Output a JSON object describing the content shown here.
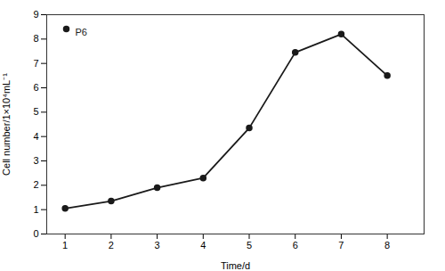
{
  "chart_data": {
    "type": "line",
    "x": [
      1,
      2,
      3,
      4,
      5,
      6,
      7,
      8
    ],
    "series": [
      {
        "name": "P6",
        "color": "#1a1a1a",
        "marker": "circle",
        "values": [
          1.05,
          1.35,
          1.9,
          2.3,
          4.35,
          7.45,
          8.2,
          6.5
        ]
      }
    ],
    "xlabel": "Time/d",
    "ylabel": "Cell number/1×10⁴mL⁻¹",
    "xlim": [
      0.6,
      8.8
    ],
    "ylim": [
      0,
      9
    ],
    "xticks": [
      1,
      2,
      3,
      4,
      5,
      6,
      7,
      8
    ],
    "yticks": [
      0,
      1,
      2,
      3,
      4,
      5,
      6,
      7,
      8,
      9
    ],
    "legend": "upper left"
  }
}
